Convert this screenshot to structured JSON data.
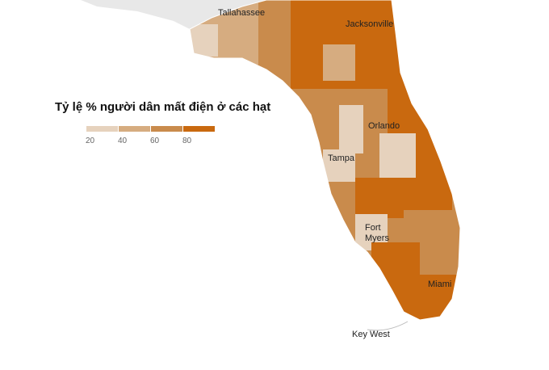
{
  "legend": {
    "title": "Tỷ lệ % người dân mất điện ở các hạt",
    "colors": [
      "#e6d2bd",
      "#d6ac80",
      "#c98b4c",
      "#c9690f"
    ],
    "ticks": [
      20,
      40,
      60,
      80
    ]
  },
  "cities": [
    "Tallahassee",
    "Jacksonville",
    "Orlando",
    "Tampa",
    "Fort Myers",
    "Miami",
    "Key West"
  ]
}
